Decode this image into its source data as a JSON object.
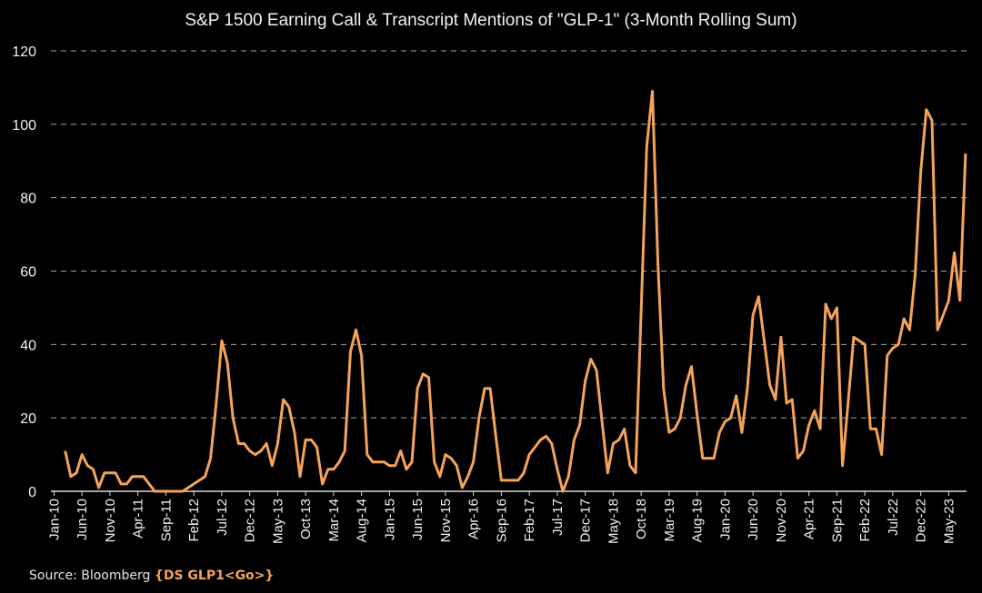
{
  "chart_data": {
    "type": "line",
    "title": "S&P 1500 Earning Call & Transcript Mentions of \"GLP-1\" (3-Month Rolling Sum)",
    "xlabel": "",
    "ylabel": "",
    "ylim": [
      0,
      120
    ],
    "yticks": [
      0,
      20,
      40,
      60,
      80,
      100,
      120
    ],
    "grid": "horizontal dashed",
    "legend": "none",
    "line_color": "#F5A35A",
    "x_start": "Mar-10",
    "x_end": "Aug-23",
    "x_frequency": "monthly",
    "xtick_labels": [
      "Jan-10",
      "Jun-10",
      "Nov-10",
      "Apr-11",
      "Sep-11",
      "Feb-12",
      "Jul-12",
      "Dec-12",
      "May-13",
      "Oct-13",
      "Mar-14",
      "Aug-14",
      "Jan-15",
      "Jun-15",
      "Nov-15",
      "Apr-16",
      "Sep-16",
      "Feb-17",
      "Jul-17",
      "Dec-17",
      "May-18",
      "Oct-18",
      "Mar-19",
      "Aug-19",
      "Jan-20",
      "Jun-20",
      "Nov-20",
      "Apr-21",
      "Sep-21",
      "Feb-22",
      "Jul-22",
      "Dec-22",
      "May-23"
    ],
    "series": [
      {
        "values": [
          11,
          4,
          5,
          10,
          7,
          6,
          1,
          5,
          5,
          5,
          2,
          2,
          4,
          4,
          4,
          2,
          0,
          0,
          0,
          0,
          0,
          0,
          1,
          2,
          3,
          4,
          9,
          24,
          41,
          35,
          20,
          13,
          13,
          11,
          10,
          11,
          13,
          7,
          13,
          25,
          23,
          16,
          4,
          14,
          14,
          12,
          2,
          6,
          6,
          8,
          11,
          38,
          44,
          37,
          10,
          8,
          8,
          8,
          7,
          7,
          11,
          6,
          8,
          28,
          32,
          31,
          8,
          4,
          10,
          9,
          7,
          1,
          4,
          8,
          20,
          28,
          28,
          15,
          3,
          3,
          3,
          3,
          5,
          10,
          12,
          14,
          15,
          13,
          6,
          0,
          4,
          14,
          18,
          30,
          36,
          33,
          19,
          5,
          13,
          14,
          17,
          7,
          5,
          49,
          94,
          109,
          62,
          28,
          16,
          17,
          20,
          29,
          34,
          21,
          9,
          9,
          9,
          16,
          19,
          20,
          26,
          16,
          28,
          48,
          53,
          41,
          29,
          25,
          42,
          24,
          25,
          9,
          11,
          18,
          22,
          17,
          51,
          47,
          50,
          7,
          24,
          42,
          41,
          40,
          17,
          17,
          10,
          37,
          39,
          40,
          47,
          44,
          59,
          87,
          104,
          101,
          44,
          48,
          52,
          65,
          52,
          92
        ]
      }
    ]
  },
  "source": {
    "label": "Source: Bloomberg",
    "code": "{DS GLP1<Go>}"
  }
}
